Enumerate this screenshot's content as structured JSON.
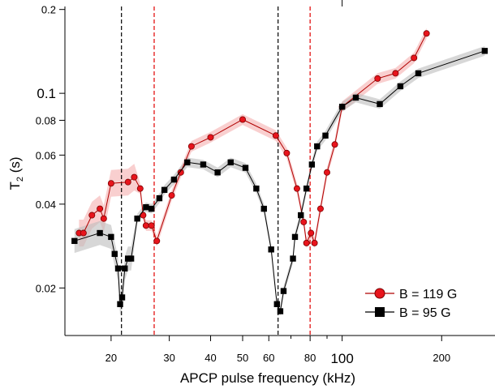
{
  "chart_data": {
    "type": "line",
    "title": "",
    "xlabel": "APCP pulse frequency (kHz)",
    "ylabel_main": "T",
    "ylabel_sub": "2",
    "ylabel_unit": " (s)",
    "x_scale": "log",
    "y_scale": "log",
    "xlim": [
      14.5,
      290
    ],
    "ylim": [
      0.0135,
      0.205
    ],
    "x_ticks": [
      {
        "value": 20,
        "label": "20"
      },
      {
        "value": 30,
        "label": "30"
      },
      {
        "value": 40,
        "label": "40"
      },
      {
        "value": 50,
        "label": "50"
      },
      {
        "value": 60,
        "label": "60"
      },
      {
        "value": 80,
        "label": "80"
      },
      {
        "value": 100,
        "label": "100"
      },
      {
        "value": 200,
        "label": "200"
      }
    ],
    "x_minor_ticks": [
      70,
      90
    ],
    "y_ticks": [
      {
        "value": 0.02,
        "label": "0.02"
      },
      {
        "value": 0.04,
        "label": "0.04"
      },
      {
        "value": 0.06,
        "label": "0.06"
      },
      {
        "value": 0.08,
        "label": "0.08"
      },
      {
        "value": 0.1,
        "label": "0.1"
      },
      {
        "value": 0.2,
        "label": "0.2"
      }
    ],
    "vlines": [
      {
        "x": 21.5,
        "color": "#000000"
      },
      {
        "x": 27,
        "color": "#e00000"
      },
      {
        "x": 64,
        "color": "#000000"
      },
      {
        "x": 80,
        "color": "#e00000"
      }
    ],
    "legend_position": "bottom-right",
    "series": [
      {
        "name": "B = 119 G",
        "color": "#e8141c",
        "band_color": "#f4a7a7",
        "marker": "circle",
        "points": [
          [
            16.0,
            0.0315
          ],
          [
            16.5,
            0.0315
          ],
          [
            17.5,
            0.0365
          ],
          [
            18.5,
            0.0385
          ],
          [
            19.0,
            0.0355
          ],
          [
            20.0,
            0.0475
          ],
          [
            22.5,
            0.048
          ],
          [
            23.5,
            0.05
          ],
          [
            24.5,
            0.0455
          ],
          [
            25.0,
            0.0365
          ],
          [
            25.5,
            0.0335
          ],
          [
            26.5,
            0.0335
          ],
          [
            27.5,
            0.0295
          ],
          [
            30.5,
            0.043
          ],
          [
            32.5,
            0.052
          ],
          [
            35.0,
            0.0645
          ],
          [
            40.0,
            0.0695
          ],
          [
            50.0,
            0.0805
          ],
          [
            63.0,
            0.0705
          ],
          [
            68.0,
            0.061
          ],
          [
            73.0,
            0.0455
          ],
          [
            76.5,
            0.0345
          ],
          [
            78.0,
            0.029
          ],
          [
            80.5,
            0.0315
          ],
          [
            82.5,
            0.029
          ],
          [
            86.0,
            0.0385
          ],
          [
            90.0,
            0.052
          ],
          [
            95.0,
            0.0655
          ],
          [
            100.0,
            0.0895
          ],
          [
            128.0,
            0.113
          ],
          [
            145.0,
            0.118
          ],
          [
            165.0,
            0.134
          ],
          [
            180.0,
            0.164
          ]
        ]
      },
      {
        "name": "B = 95 G",
        "color": "#000000",
        "band_color": "#bcbcbc",
        "marker": "square",
        "points": [
          [
            15.5,
            0.0295
          ],
          [
            18.5,
            0.0315
          ],
          [
            20.0,
            0.0305
          ],
          [
            20.5,
            0.0265
          ],
          [
            21.0,
            0.0235
          ],
          [
            21.3,
            0.0175
          ],
          [
            21.6,
            0.0185
          ],
          [
            22.0,
            0.0235
          ],
          [
            22.5,
            0.0255
          ],
          [
            23.0,
            0.0255
          ],
          [
            24.0,
            0.0355
          ],
          [
            25.5,
            0.039
          ],
          [
            26.5,
            0.0385
          ],
          [
            28.0,
            0.042
          ],
          [
            29.0,
            0.045
          ],
          [
            31.0,
            0.049
          ],
          [
            34.0,
            0.0565
          ],
          [
            38.0,
            0.0555
          ],
          [
            42.0,
            0.052
          ],
          [
            46.0,
            0.0565
          ],
          [
            51.0,
            0.054
          ],
          [
            55.0,
            0.0455
          ],
          [
            58.0,
            0.0385
          ],
          [
            61.0,
            0.0275
          ],
          [
            63.5,
            0.0175
          ],
          [
            65.0,
            0.0165
          ],
          [
            66.5,
            0.0195
          ],
          [
            71.0,
            0.0255
          ],
          [
            72.0,
            0.0305
          ],
          [
            75.0,
            0.0365
          ],
          [
            78.0,
            0.0455
          ],
          [
            81.0,
            0.0555
          ],
          [
            84.0,
            0.0645
          ],
          [
            89.0,
            0.0705
          ],
          [
            100.0,
            0.0895
          ],
          [
            110.0,
            0.0965
          ],
          [
            130.0,
            0.0915
          ],
          [
            150.0,
            0.106
          ],
          [
            170.0,
            0.118
          ],
          [
            270.0,
            0.142
          ]
        ]
      }
    ]
  }
}
